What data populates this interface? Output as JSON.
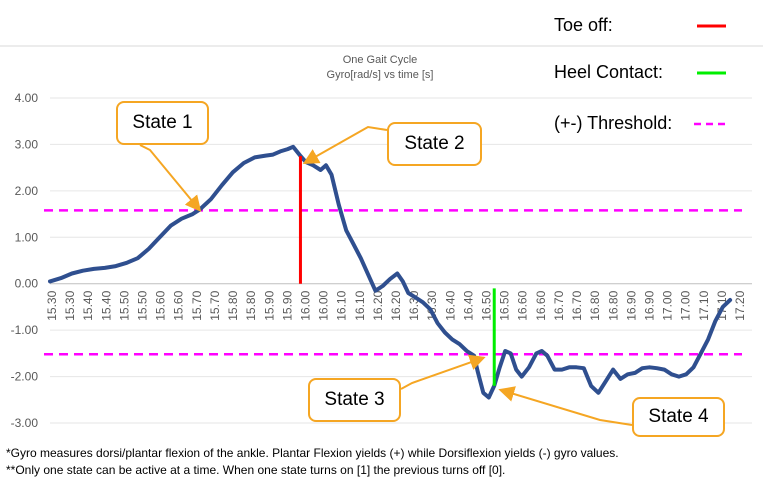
{
  "chart_data": {
    "type": "line",
    "title": "One Gait Cycle",
    "subtitle": "Gyro[rad/s] vs time [s]",
    "xlabel": "",
    "ylabel": "",
    "ylim": [
      -3.0,
      4.0
    ],
    "xlim": [
      15.3,
      17.22
    ],
    "y_ticks": [
      "4.00",
      "3.00",
      "2.00",
      "1.00",
      "0.00",
      "-1.00",
      "-2.00",
      "-3.00"
    ],
    "x_ticks": [
      "15.30",
      "15.30",
      "15.40",
      "15.40",
      "15.50",
      "15.50",
      "15.60",
      "15.60",
      "15.70",
      "15.70",
      "15.80",
      "15.80",
      "15.90",
      "15.90",
      "16.00",
      "16.00",
      "16.10",
      "16.10",
      "16.20",
      "16.20",
      "16.30",
      "16.30",
      "16.40",
      "16.40",
      "16.50",
      "16.50",
      "16.60",
      "16.60",
      "16.70",
      "16.70",
      "16.80",
      "16.80",
      "16.90",
      "16.90",
      "17.00",
      "17.00",
      "17.10",
      "17.10",
      "17.20"
    ],
    "grid": "horizontal",
    "series": [
      {
        "color": "#2f4f8f",
        "points": [
          [
            15.3,
            0.05
          ],
          [
            15.33,
            0.12
          ],
          [
            15.36,
            0.22
          ],
          [
            15.39,
            0.28
          ],
          [
            15.42,
            0.32
          ],
          [
            15.45,
            0.34
          ],
          [
            15.48,
            0.38
          ],
          [
            15.51,
            0.45
          ],
          [
            15.54,
            0.55
          ],
          [
            15.57,
            0.75
          ],
          [
            15.6,
            1.0
          ],
          [
            15.63,
            1.25
          ],
          [
            15.66,
            1.4
          ],
          [
            15.69,
            1.5
          ],
          [
            15.71,
            1.6
          ],
          [
            15.74,
            1.82
          ],
          [
            15.77,
            2.12
          ],
          [
            15.8,
            2.4
          ],
          [
            15.83,
            2.6
          ],
          [
            15.86,
            2.72
          ],
          [
            15.89,
            2.76
          ],
          [
            15.91,
            2.78
          ],
          [
            15.93,
            2.85
          ],
          [
            15.95,
            2.9
          ],
          [
            15.965,
            2.95
          ],
          [
            15.985,
            2.75
          ],
          [
            16.0,
            2.62
          ],
          [
            16.02,
            2.55
          ],
          [
            16.04,
            2.45
          ],
          [
            16.055,
            2.55
          ],
          [
            16.07,
            2.35
          ],
          [
            16.09,
            1.7
          ],
          [
            16.11,
            1.15
          ],
          [
            16.13,
            0.85
          ],
          [
            16.15,
            0.55
          ],
          [
            16.17,
            0.2
          ],
          [
            16.19,
            -0.15
          ],
          [
            16.21,
            -0.05
          ],
          [
            16.23,
            0.1
          ],
          [
            16.25,
            0.22
          ],
          [
            16.265,
            0.05
          ],
          [
            16.28,
            -0.2
          ],
          [
            16.3,
            -0.3
          ],
          [
            16.32,
            -0.4
          ],
          [
            16.34,
            -0.55
          ],
          [
            16.36,
            -0.85
          ],
          [
            16.38,
            -1.05
          ],
          [
            16.4,
            -1.2
          ],
          [
            16.42,
            -1.3
          ],
          [
            16.44,
            -1.45
          ],
          [
            16.46,
            -1.55
          ],
          [
            16.47,
            -1.9
          ],
          [
            16.485,
            -2.35
          ],
          [
            16.5,
            -2.45
          ],
          [
            16.515,
            -2.2
          ],
          [
            16.53,
            -1.8
          ],
          [
            16.545,
            -1.45
          ],
          [
            16.56,
            -1.5
          ],
          [
            16.575,
            -1.85
          ],
          [
            16.59,
            -2.0
          ],
          [
            16.61,
            -1.8
          ],
          [
            16.63,
            -1.5
          ],
          [
            16.645,
            -1.45
          ],
          [
            16.66,
            -1.55
          ],
          [
            16.68,
            -1.85
          ],
          [
            16.7,
            -1.85
          ],
          [
            16.72,
            -1.8
          ],
          [
            16.74,
            -1.8
          ],
          [
            16.76,
            -1.82
          ],
          [
            16.78,
            -2.2
          ],
          [
            16.8,
            -2.35
          ],
          [
            16.82,
            -2.1
          ],
          [
            16.84,
            -1.85
          ],
          [
            16.86,
            -2.05
          ],
          [
            16.88,
            -1.95
          ],
          [
            16.9,
            -1.92
          ],
          [
            16.92,
            -1.82
          ],
          [
            16.94,
            -1.8
          ],
          [
            16.96,
            -1.82
          ],
          [
            16.98,
            -1.85
          ],
          [
            17.0,
            -1.95
          ],
          [
            17.02,
            -2.0
          ],
          [
            17.04,
            -1.95
          ],
          [
            17.06,
            -1.8
          ],
          [
            17.08,
            -1.5
          ],
          [
            17.1,
            -1.2
          ],
          [
            17.12,
            -0.8
          ],
          [
            17.14,
            -0.5
          ],
          [
            17.16,
            -0.35
          ]
        ]
      }
    ],
    "threshold_color": "#ff00ff",
    "threshold_values": [
      1.58,
      -1.52
    ],
    "toe_off": {
      "color": "#ff0000",
      "x": 15.985,
      "from": 0.0,
      "to": 2.75
    },
    "heel_contact": {
      "color": "#00ee00",
      "x": 16.515,
      "from": -0.1,
      "to": -2.2
    },
    "legend": [
      {
        "label": "Toe off:",
        "color": "#ff0000",
        "style": "solid"
      },
      {
        "label": "Heel Contact:",
        "color": "#00ee00",
        "style": "solid"
      },
      {
        "label": "(+-) Threshold:",
        "color": "#ff00ff",
        "style": "dashed"
      }
    ],
    "legend_position": "top-right",
    "annotations": [
      {
        "label": "State 1",
        "color": "#f5a623",
        "target": [
          15.71,
          1.58
        ]
      },
      {
        "label": "State 2",
        "color": "#f5a623",
        "target": [
          15.985,
          2.6
        ]
      },
      {
        "label": "State 3",
        "color": "#f5a623",
        "target": [
          16.47,
          -1.55
        ]
      },
      {
        "label": "State 4",
        "color": "#f5a623",
        "target": [
          16.515,
          -2.2
        ]
      }
    ]
  },
  "footnotes": [
    "*Gyro measures dorsi/plantar flexion of the ankle. Plantar Flexion yields (+) while Dorsiflexion yields (-) gyro values.",
    "**Only one state can be active at a time.  When one state turns on [1] the previous turns off [0]."
  ]
}
